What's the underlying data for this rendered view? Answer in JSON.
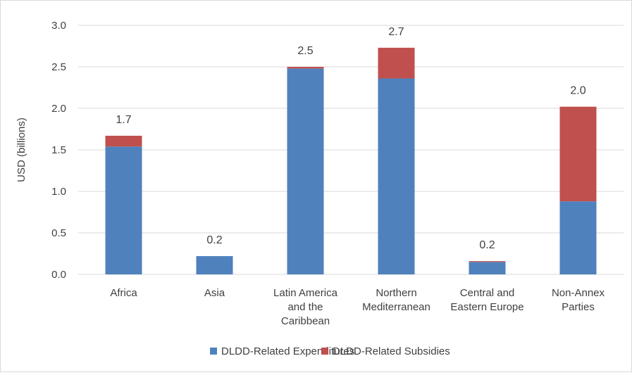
{
  "chart_data": {
    "type": "bar",
    "stacked": true,
    "categories": [
      [
        "Africa"
      ],
      [
        "Asia"
      ],
      [
        "Latin America",
        "and the",
        "Caribbean"
      ],
      [
        "Northern",
        "Mediterranean"
      ],
      [
        "Central and",
        "Eastern Europe"
      ],
      [
        "Non-Annex",
        "Parties"
      ]
    ],
    "series": [
      {
        "name": "DLDD-Related Expenditures",
        "color": "#4f81bd",
        "values": [
          1.54,
          0.22,
          2.48,
          2.36,
          0.15,
          0.88
        ]
      },
      {
        "name": "DLDD-Related Subsidies",
        "color": "#c0504d",
        "values": [
          0.13,
          0.0,
          0.02,
          0.37,
          0.01,
          1.14
        ]
      }
    ],
    "data_labels": [
      "1.7",
      "0.2",
      "2.5",
      "2.7",
      "0.2",
      "2.0"
    ],
    "xlabel": "",
    "ylabel": "USD (billions)",
    "ylim": [
      0,
      3.0
    ],
    "yticks": [
      "0.0",
      "0.5",
      "1.0",
      "1.5",
      "2.0",
      "2.5",
      "3.0"
    ],
    "grid": true,
    "legend_position": "bottom"
  }
}
